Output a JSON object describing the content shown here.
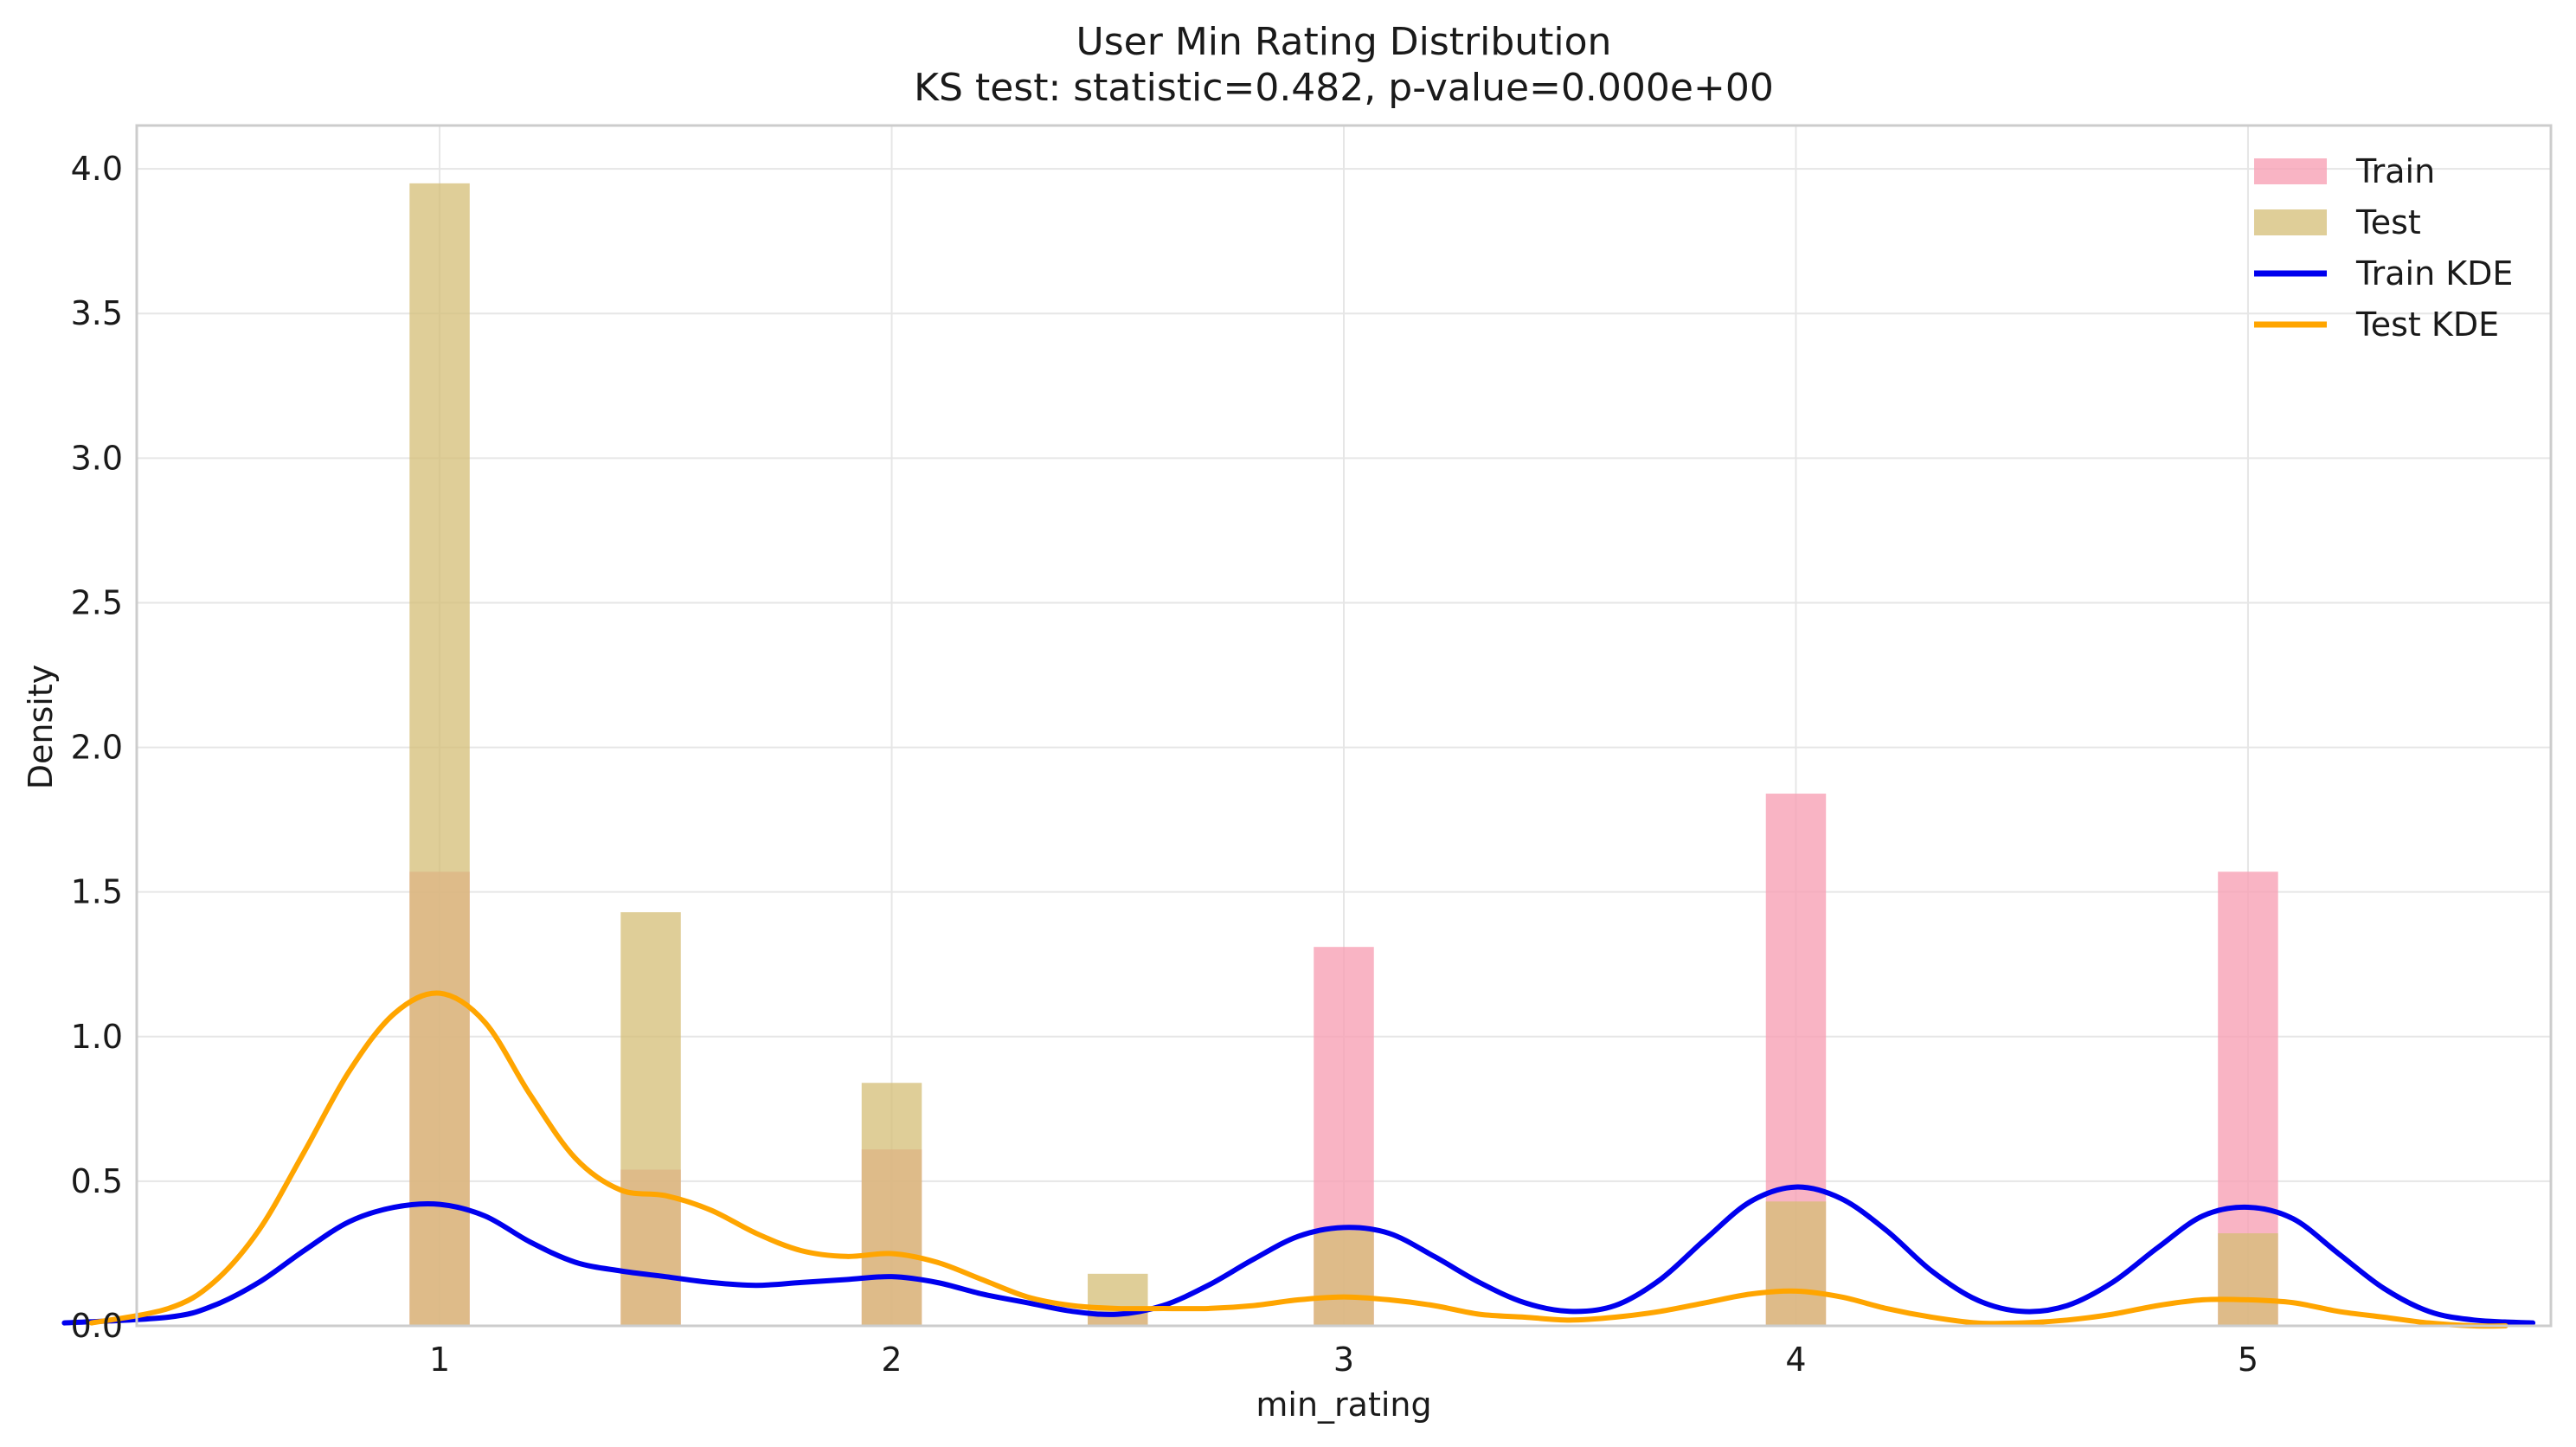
{
  "chart_data": {
    "type": "bar",
    "title": "User Min Rating Distribution",
    "subtitle": "KS test: statistic=0.482, p-value=0.000e+00",
    "xlabel": "min_rating",
    "ylabel": "Density",
    "xlim": [
      0.33,
      5.67
    ],
    "ylim": [
      0,
      4.15
    ],
    "xticks": [
      1,
      2,
      3,
      4,
      5
    ],
    "xtick_labels": [
      "1",
      "2",
      "3",
      "4",
      "5"
    ],
    "yticks": [
      0.0,
      0.5,
      1.0,
      1.5,
      2.0,
      2.5,
      3.0,
      3.5,
      4.0
    ],
    "ytick_labels": [
      "0.0",
      "0.5",
      "1.0",
      "1.5",
      "2.0",
      "2.5",
      "3.0",
      "3.5",
      "4.0"
    ],
    "grid": true,
    "legend_position": "top-right",
    "bar_width": 0.133,
    "bar_centers": [
      1.0,
      1.467,
      2.0,
      2.5,
      3.0,
      4.0,
      5.0
    ],
    "histograms": [
      {
        "name": "Train",
        "color": "#f7a1b5",
        "opacity": 0.8,
        "values": [
          1.57,
          0.54,
          0.61,
          0.05,
          1.31,
          1.84,
          1.57
        ]
      },
      {
        "name": "Test",
        "color": "#d4bd76",
        "opacity": 0.75,
        "values": [
          3.95,
          1.43,
          0.84,
          0.18,
          0.33,
          0.43,
          0.32
        ]
      }
    ],
    "kde": [
      {
        "name": "Train KDE",
        "color": "#0000ee",
        "x": [
          0.17,
          0.4,
          0.5,
          0.6,
          0.7,
          0.8,
          0.9,
          1.0,
          1.1,
          1.2,
          1.3,
          1.4,
          1.5,
          1.6,
          1.7,
          1.8,
          1.9,
          2.0,
          2.1,
          2.2,
          2.3,
          2.4,
          2.5,
          2.6,
          2.7,
          2.8,
          2.9,
          3.0,
          3.1,
          3.2,
          3.3,
          3.4,
          3.5,
          3.6,
          3.7,
          3.8,
          3.9,
          4.0,
          4.1,
          4.2,
          4.3,
          4.4,
          4.5,
          4.6,
          4.7,
          4.8,
          4.9,
          5.0,
          5.1,
          5.2,
          5.3,
          5.4,
          5.5,
          5.63
        ],
        "y": [
          0.01,
          0.03,
          0.07,
          0.15,
          0.26,
          0.36,
          0.41,
          0.42,
          0.38,
          0.29,
          0.22,
          0.19,
          0.17,
          0.15,
          0.14,
          0.15,
          0.16,
          0.17,
          0.15,
          0.11,
          0.08,
          0.05,
          0.04,
          0.07,
          0.14,
          0.23,
          0.31,
          0.34,
          0.32,
          0.24,
          0.15,
          0.08,
          0.05,
          0.07,
          0.16,
          0.3,
          0.43,
          0.48,
          0.44,
          0.33,
          0.19,
          0.09,
          0.05,
          0.07,
          0.15,
          0.27,
          0.38,
          0.41,
          0.37,
          0.25,
          0.13,
          0.05,
          0.02,
          0.01
        ]
      },
      {
        "name": "Test KDE",
        "color": "#ffa500",
        "x": [
          0.23,
          0.4,
          0.5,
          0.6,
          0.7,
          0.8,
          0.9,
          1.0,
          1.1,
          1.2,
          1.3,
          1.4,
          1.5,
          1.6,
          1.7,
          1.8,
          1.9,
          2.0,
          2.1,
          2.2,
          2.3,
          2.4,
          2.5,
          2.6,
          2.7,
          2.8,
          2.9,
          3.0,
          3.1,
          3.2,
          3.3,
          3.4,
          3.5,
          3.6,
          3.7,
          3.8,
          3.9,
          4.0,
          4.1,
          4.2,
          4.3,
          4.4,
          4.5,
          4.6,
          4.7,
          4.8,
          4.9,
          5.0,
          5.1,
          5.2,
          5.3,
          5.4,
          5.5,
          5.57
        ],
        "y": [
          0.01,
          0.06,
          0.15,
          0.33,
          0.6,
          0.88,
          1.08,
          1.15,
          1.05,
          0.8,
          0.58,
          0.47,
          0.45,
          0.4,
          0.32,
          0.26,
          0.24,
          0.25,
          0.22,
          0.16,
          0.1,
          0.07,
          0.06,
          0.06,
          0.06,
          0.07,
          0.09,
          0.1,
          0.09,
          0.07,
          0.04,
          0.03,
          0.02,
          0.03,
          0.05,
          0.08,
          0.11,
          0.12,
          0.1,
          0.06,
          0.03,
          0.01,
          0.01,
          0.02,
          0.04,
          0.07,
          0.09,
          0.09,
          0.08,
          0.05,
          0.03,
          0.01,
          0.0,
          0.0
        ]
      }
    ]
  }
}
